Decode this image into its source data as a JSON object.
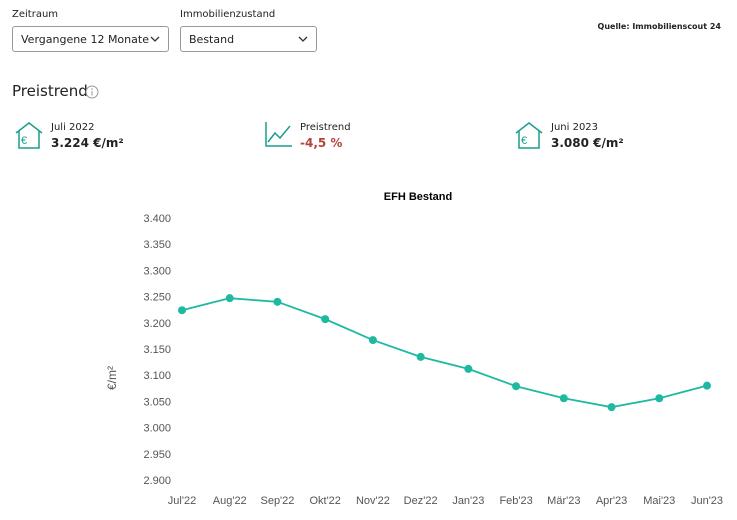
{
  "filters": [
    {
      "label": "Zeitraum",
      "value": "Vergangene 12 Monate"
    },
    {
      "label": "Immobilienzustand",
      "value": "Bestand"
    }
  ],
  "source": "Quelle: Immobilienscout 24",
  "section_title": "Preistrend",
  "stats": [
    {
      "label": "Juli 2022",
      "value": "3.224 €/m²"
    },
    {
      "label": "Preistrend",
      "value": "-4,5 %"
    },
    {
      "label": "Juni 2023",
      "value": "3.080 €/m²"
    }
  ],
  "chart_data": {
    "type": "line",
    "title": "EFH Bestand",
    "y_label": "€/m²",
    "categories": [
      "Jul'22",
      "Aug'22",
      "Sep'22",
      "Okt'22",
      "Nov'22",
      "Dez'22",
      "Jan'23",
      "Feb'23",
      "Mär'23",
      "Apr'23",
      "Mai'23",
      "Jun'23"
    ],
    "series": [
      {
        "name": "EFH Bestand",
        "color": "#1db9a0",
        "values": [
          3224,
          3247,
          3240,
          3207,
          3167,
          3135,
          3112,
          3079,
          3056,
          3039,
          3056,
          3080
        ]
      }
    ],
    "ylim": [
      2900,
      3400
    ],
    "yticks": [
      {
        "value": 2900,
        "label": "2.900"
      },
      {
        "value": 2950,
        "label": "2.950"
      },
      {
        "value": 3000,
        "label": "3.000"
      },
      {
        "value": 3050,
        "label": "3.050"
      },
      {
        "value": 3100,
        "label": "3.100"
      },
      {
        "value": 3150,
        "label": "3.150"
      },
      {
        "value": 3200,
        "label": "3.200"
      },
      {
        "value": 3250,
        "label": "3.250"
      },
      {
        "value": 3300,
        "label": "3.300"
      },
      {
        "value": 3350,
        "label": "3.350"
      },
      {
        "value": 3400,
        "label": "3.400"
      }
    ],
    "grid": false
  }
}
